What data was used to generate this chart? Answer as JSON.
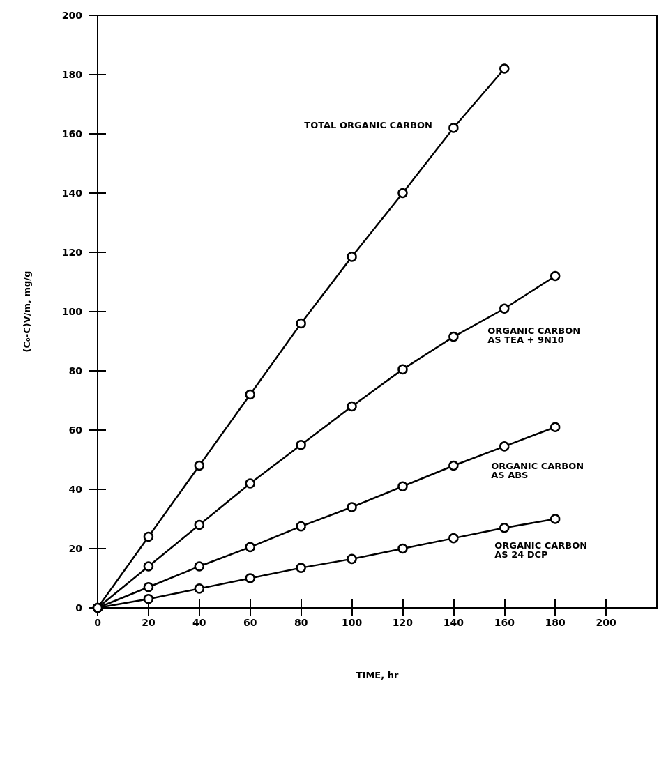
{
  "chart_data": {
    "type": "line",
    "xlabel": "TIME, hr",
    "ylabel": "(C₀-C)V/m, mg/g",
    "x": [
      0,
      20,
      40,
      60,
      80,
      100,
      120,
      140,
      160,
      180
    ],
    "series": [
      {
        "name": "TOTAL ORGANIC CARBON",
        "color": "#000000",
        "x": [
          0,
          20,
          40,
          60,
          80,
          100,
          120,
          140,
          160
        ],
        "values": [
          0,
          24,
          48,
          72,
          96,
          118.5,
          140,
          162,
          182
        ]
      },
      {
        "name": "ORGANIC CARBON AS TEA + 9N10",
        "color": "#000000",
        "values": [
          0,
          14,
          28,
          42,
          55,
          68,
          80.5,
          91.5,
          101,
          112
        ]
      },
      {
        "name": "ORGANIC CARBON AS ABS",
        "color": "#000000",
        "values": [
          0,
          7,
          14,
          20.5,
          27.5,
          34,
          41,
          48,
          54.5,
          61
        ]
      },
      {
        "name": "ORGANIC CARBON AS 24 DCP",
        "color": "#000000",
        "values": [
          0,
          3,
          6.5,
          10,
          13.5,
          16.5,
          20,
          23.5,
          27,
          30
        ]
      }
    ],
    "xlim": [
      0,
      220
    ],
    "ylim": [
      0,
      200
    ],
    "xticks": [
      0,
      20,
      40,
      60,
      80,
      100,
      120,
      140,
      160,
      180,
      200
    ],
    "yticks": [
      0,
      20,
      40,
      60,
      80,
      100,
      120,
      140,
      160,
      180,
      200
    ],
    "grid": false,
    "legend": false,
    "marker": "circle",
    "line_style": "solid"
  }
}
